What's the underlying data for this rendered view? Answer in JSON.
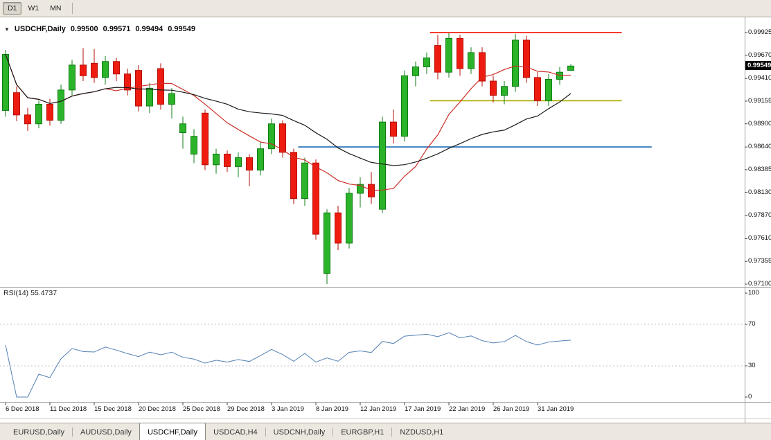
{
  "toolbar": {
    "timeframes": [
      {
        "label": "D1",
        "active": true
      },
      {
        "label": "W1",
        "active": false
      },
      {
        "label": "MN",
        "active": false
      }
    ]
  },
  "icons": {
    "symbol_marker": "▼"
  },
  "chart_header": {
    "symbol": "USDCHF,Daily",
    "open": "0.99500",
    "high": "0.99571",
    "low": "0.99494",
    "close": "0.99549"
  },
  "indicator_label": "RSI(14) 55.4737",
  "price_badge": "0.99549",
  "bottom_tabs": [
    {
      "label": "EURUSD,Daily",
      "active": false
    },
    {
      "label": "AUDUSD,Daily",
      "active": false
    },
    {
      "label": "USDCHF,Daily",
      "active": true
    },
    {
      "label": "USDCAD,H4",
      "active": false
    },
    {
      "label": "USDCNH,Daily",
      "active": false
    },
    {
      "label": "EURGBP,H1",
      "active": false
    },
    {
      "label": "NZDUSD,H1",
      "active": false
    }
  ],
  "colors": {
    "bull": "#2bb32a",
    "bull_border": "#0f7d14",
    "bear": "#ee1c10",
    "bear_border": "#b50d02",
    "ma_fast": "#cc2e26",
    "ma_slow": "#1a1a1a",
    "level_red": "#fa3b2e",
    "level_yellow": "#b5b820",
    "level_blue": "#3e7fc1",
    "rsi_line": "#5380b5",
    "badge_bg": "#000000",
    "badge_text": "#ffffff",
    "grid_dashed": "#c3c3c3",
    "separator": "#9a9a9a"
  },
  "chart_data": {
    "type": "candlestick",
    "symbol": "USDCHF",
    "timeframe": "Daily",
    "current_ohlc": {
      "open": 0.995,
      "high": 0.99571,
      "low": 0.99494,
      "close": 0.99549
    },
    "last_price": 0.99549,
    "price_range": {
      "top": 0.99925,
      "bottom": 0.971
    },
    "price_axis_ticks": [
      "0.99925",
      "0.99670",
      "0.99410",
      "0.99155",
      "0.98900",
      "0.98640",
      "0.98385",
      "0.98130",
      "0.97870",
      "0.97610",
      "0.97355",
      "0.97100"
    ],
    "date_ticks": [
      {
        "label": "6 Dec 2018",
        "index": 0
      },
      {
        "label": "11 Dec 2018",
        "index": 4
      },
      {
        "label": "15 Dec 2018",
        "index": 8
      },
      {
        "label": "20 Dec 2018",
        "index": 12
      },
      {
        "label": "25 Dec 2018",
        "index": 16
      },
      {
        "label": "29 Dec 2018",
        "index": 20
      },
      {
        "label": "3 Jan 2019",
        "index": 24
      },
      {
        "label": "8 Jan 2019",
        "index": 28
      },
      {
        "label": "12 Jan 2019",
        "index": 32
      },
      {
        "label": "17 Jan 2019",
        "index": 36
      },
      {
        "label": "22 Jan 2019",
        "index": 40
      },
      {
        "label": "26 Jan 2019",
        "index": 44
      },
      {
        "label": "31 Jan 2019",
        "index": 48
      }
    ],
    "candles": [
      [
        0.9905,
        0.9973,
        0.9898,
        0.9968
      ],
      [
        0.9925,
        0.9932,
        0.9893,
        0.99
      ],
      [
        0.99,
        0.9908,
        0.9882,
        0.989
      ],
      [
        0.989,
        0.9916,
        0.9885,
        0.9912
      ],
      [
        0.9912,
        0.9918,
        0.9888,
        0.9894
      ],
      [
        0.9894,
        0.9934,
        0.989,
        0.9928
      ],
      [
        0.9928,
        0.9962,
        0.9922,
        0.9956
      ],
      [
        0.9956,
        0.9975,
        0.9938,
        0.9944
      ],
      [
        0.9958,
        0.9974,
        0.9936,
        0.9942
      ],
      [
        0.9942,
        0.9966,
        0.9934,
        0.996
      ],
      [
        0.996,
        0.9964,
        0.9938,
        0.9946
      ],
      [
        0.9946,
        0.9952,
        0.9922,
        0.9928
      ],
      [
        0.995,
        0.9956,
        0.9904,
        0.991
      ],
      [
        0.991,
        0.9936,
        0.9902,
        0.993
      ],
      [
        0.9952,
        0.9958,
        0.9906,
        0.9912
      ],
      [
        0.9912,
        0.993,
        0.9896,
        0.9924
      ],
      [
        0.988,
        0.9898,
        0.9862,
        0.989
      ],
      [
        0.9856,
        0.9884,
        0.9846,
        0.9876
      ],
      [
        0.9902,
        0.9906,
        0.9838,
        0.9844
      ],
      [
        0.9844,
        0.9862,
        0.9834,
        0.9856
      ],
      [
        0.9856,
        0.986,
        0.9836,
        0.9842
      ],
      [
        0.9842,
        0.9858,
        0.983,
        0.9852
      ],
      [
        0.9852,
        0.9856,
        0.982,
        0.9838
      ],
      [
        0.9838,
        0.987,
        0.9832,
        0.9862
      ],
      [
        0.9862,
        0.9896,
        0.9856,
        0.989
      ],
      [
        0.989,
        0.9894,
        0.9852,
        0.9858
      ],
      [
        0.9858,
        0.9862,
        0.98,
        0.9806
      ],
      [
        0.9806,
        0.9852,
        0.9798,
        0.9846
      ],
      [
        0.9846,
        0.985,
        0.976,
        0.9766
      ],
      [
        0.9722,
        0.9794,
        0.971,
        0.979
      ],
      [
        0.979,
        0.9798,
        0.9748,
        0.9756
      ],
      [
        0.9756,
        0.9818,
        0.975,
        0.9812
      ],
      [
        0.9812,
        0.983,
        0.9796,
        0.9822
      ],
      [
        0.9822,
        0.9836,
        0.98,
        0.9808
      ],
      [
        0.9794,
        0.9898,
        0.979,
        0.9892
      ],
      [
        0.9892,
        0.9906,
        0.9868,
        0.9876
      ],
      [
        0.9876,
        0.995,
        0.987,
        0.9944
      ],
      [
        0.9944,
        0.996,
        0.9932,
        0.9954
      ],
      [
        0.9954,
        0.997,
        0.9946,
        0.9964
      ],
      [
        0.9978,
        0.999,
        0.994,
        0.9948
      ],
      [
        0.9948,
        0.9992,
        0.9942,
        0.9986
      ],
      [
        0.9986,
        0.999,
        0.9944,
        0.9952
      ],
      [
        0.9952,
        0.9976,
        0.9946,
        0.997
      ],
      [
        0.997,
        0.9976,
        0.9932,
        0.9938
      ],
      [
        0.9938,
        0.9944,
        0.9914,
        0.9922
      ],
      [
        0.9922,
        0.9938,
        0.9912,
        0.9932
      ],
      [
        0.9932,
        0.9991,
        0.9926,
        0.9984
      ],
      [
        0.9984,
        0.9989,
        0.9936,
        0.9942
      ],
      [
        0.9942,
        0.9948,
        0.991,
        0.9916
      ],
      [
        0.9916,
        0.9946,
        0.991,
        0.994
      ],
      [
        0.994,
        0.9954,
        0.9934,
        0.9948
      ],
      [
        0.995,
        0.99571,
        0.99494,
        0.99549
      ]
    ],
    "moving_averages": [
      {
        "period": 10,
        "color_key": "ma_fast"
      },
      {
        "period": 21,
        "color_key": "ma_slow"
      }
    ],
    "levels": [
      {
        "value": 0.99925,
        "color_key": "level_red",
        "from_index": 38.3,
        "to_index": 55.6
      },
      {
        "value": 0.9916,
        "color_key": "level_yellow",
        "from_index": 38.3,
        "to_index": 55.6
      },
      {
        "value": 0.9864,
        "color_key": "level_blue",
        "from_index": 26.4,
        "to_index": 58.3
      }
    ],
    "rsi": {
      "type": "line",
      "period": 14,
      "current": 55.4737,
      "range": [
        0,
        100
      ],
      "axis_ticks": [
        "100",
        "70",
        "30",
        "0"
      ],
      "dashed_levels": [
        70,
        30
      ]
    }
  }
}
